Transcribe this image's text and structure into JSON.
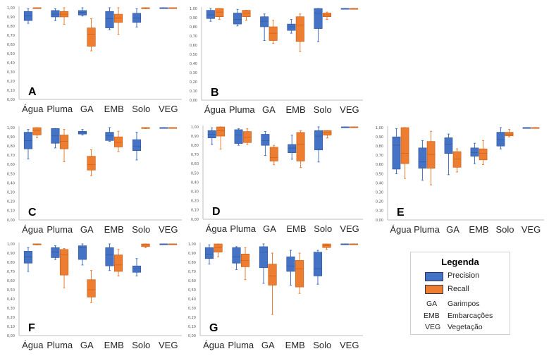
{
  "legend": {
    "title": "Legenda",
    "series": [
      {
        "name": "Precision",
        "color": "#4472c4"
      },
      {
        "name": "Recall",
        "color": "#ed7d31"
      }
    ],
    "abbreviations": [
      {
        "abbr": "GA",
        "meaning": "Garimpos"
      },
      {
        "abbr": "EMB",
        "meaning": "Embarcações"
      },
      {
        "abbr": "VEG",
        "meaning": "Vegetação"
      }
    ]
  },
  "chart_data": [
    {
      "type": "boxplot",
      "panel": "A",
      "categories": [
        "Água",
        "Pluma",
        "GA",
        "EMB",
        "Solo",
        "VEG"
      ],
      "ylim": [
        0,
        1
      ],
      "yticks": [
        "0,00",
        "0,10",
        "0,20",
        "0,30",
        "0,40",
        "0,50",
        "0,60",
        "0,70",
        "0,80",
        "0,90",
        "1,00"
      ],
      "series": [
        {
          "name": "Precision",
          "boxes": [
            [
              0.83,
              0.86,
              0.91,
              0.96,
              0.99
            ],
            [
              0.86,
              0.9,
              0.93,
              0.97,
              0.99
            ],
            [
              0.91,
              0.92,
              0.95,
              0.97,
              1.0
            ],
            [
              0.76,
              0.78,
              0.88,
              0.96,
              1.0
            ],
            [
              0.79,
              0.84,
              0.89,
              0.94,
              0.99
            ],
            [
              1.0,
              1.0,
              1.0,
              1.0,
              1.0
            ]
          ]
        },
        {
          "name": "Recall",
          "boxes": [
            [
              1.0,
              1.0,
              1.0,
              1.0,
              1.0
            ],
            [
              0.82,
              0.9,
              0.93,
              0.96,
              1.0
            ],
            [
              0.53,
              0.58,
              0.71,
              0.78,
              0.88
            ],
            [
              0.71,
              0.84,
              0.89,
              0.93,
              1.0
            ],
            [
              0.99,
              0.99,
              1.0,
              1.0,
              1.0
            ],
            [
              1.0,
              1.0,
              1.0,
              1.0,
              1.0
            ]
          ]
        }
      ]
    },
    {
      "type": "boxplot",
      "panel": "B",
      "categories": [
        "Água",
        "Pluma",
        "GA",
        "EMB",
        "Solo",
        "VEG"
      ],
      "ylim": [
        0,
        1
      ],
      "yticks": [
        "0,00",
        "0,10",
        "0,20",
        "0,30",
        "0,40",
        "0,50",
        "0,60",
        "0,70",
        "0,80",
        "0,90",
        "1,00"
      ],
      "series": [
        {
          "name": "Precision",
          "boxes": [
            [
              0.86,
              0.89,
              0.93,
              0.98,
              1.0
            ],
            [
              0.81,
              0.83,
              0.88,
              0.95,
              0.99
            ],
            [
              0.65,
              0.8,
              0.86,
              0.91,
              0.94
            ],
            [
              0.73,
              0.76,
              0.8,
              0.83,
              0.88
            ],
            [
              0.64,
              0.78,
              0.95,
              1.0,
              1.0
            ],
            [
              1.0,
              1.0,
              1.0,
              1.0,
              1.0
            ]
          ]
        },
        {
          "name": "Recall",
          "boxes": [
            [
              0.88,
              0.91,
              0.96,
              1.0,
              1.0
            ],
            [
              0.87,
              0.91,
              0.95,
              0.98,
              0.98
            ],
            [
              0.62,
              0.65,
              0.73,
              0.8,
              0.87
            ],
            [
              0.53,
              0.64,
              0.82,
              0.91,
              0.94
            ],
            [
              0.88,
              0.91,
              0.93,
              0.95,
              0.96
            ],
            [
              1.0,
              1.0,
              1.0,
              1.0,
              1.0
            ]
          ]
        }
      ]
    },
    {
      "type": "boxplot",
      "panel": "C",
      "categories": [
        "Água",
        "Pluma",
        "GA",
        "EMB",
        "Solo",
        "VEG"
      ],
      "ylim": [
        0,
        1
      ],
      "yticks": [
        "0,00",
        "0,10",
        "0,20",
        "0,30",
        "0,40",
        "0,50",
        "0,60",
        "0,70",
        "0,80",
        "0,90",
        "1,00"
      ],
      "series": [
        {
          "name": "Precision",
          "boxes": [
            [
              0.66,
              0.77,
              0.86,
              0.95,
              0.98
            ],
            [
              0.78,
              0.83,
              0.91,
              0.99,
              0.99
            ],
            [
              0.92,
              0.93,
              0.95,
              0.96,
              0.98
            ],
            [
              0.85,
              0.86,
              0.91,
              0.95,
              1.0
            ],
            [
              0.65,
              0.75,
              0.8,
              0.87,
              0.95
            ],
            [
              1.0,
              1.0,
              1.0,
              1.0,
              1.0
            ]
          ]
        },
        {
          "name": "Recall",
          "boxes": [
            [
              0.89,
              0.92,
              0.97,
              1.0,
              1.0
            ],
            [
              0.63,
              0.77,
              0.85,
              0.92,
              0.98
            ],
            [
              0.48,
              0.54,
              0.6,
              0.69,
              0.76
            ],
            [
              0.74,
              0.79,
              0.84,
              0.9,
              0.96
            ],
            [
              0.99,
              0.99,
              1.0,
              1.0,
              1.0
            ],
            [
              1.0,
              1.0,
              1.0,
              1.0,
              1.0
            ]
          ]
        }
      ]
    },
    {
      "type": "boxplot",
      "panel": "D",
      "categories": [
        "Água",
        "Pluma",
        "GA",
        "EMB",
        "Solo",
        "VEG"
      ],
      "ylim": [
        0,
        1
      ],
      "yticks": [
        "0,00",
        "0,10",
        "0,20",
        "0,30",
        "0,40",
        "0,50",
        "0,60",
        "0,70",
        "0,80",
        "0,90",
        "1,00"
      ],
      "series": [
        {
          "name": "Precision",
          "boxes": [
            [
              0.81,
              0.88,
              0.92,
              0.96,
              0.99
            ],
            [
              0.8,
              0.82,
              0.91,
              0.97,
              0.98
            ],
            [
              0.69,
              0.8,
              0.85,
              0.92,
              0.95
            ],
            [
              0.65,
              0.72,
              0.77,
              0.81,
              0.91
            ],
            [
              0.62,
              0.75,
              0.9,
              0.96,
              1.0
            ],
            [
              1.0,
              1.0,
              1.0,
              1.0,
              1.0
            ]
          ]
        },
        {
          "name": "Recall",
          "boxes": [
            [
              0.76,
              0.9,
              0.96,
              1.0,
              1.0
            ],
            [
              0.81,
              0.83,
              0.89,
              0.95,
              0.98
            ],
            [
              0.59,
              0.63,
              0.67,
              0.78,
              0.8
            ],
            [
              0.56,
              0.63,
              0.81,
              0.94,
              0.96
            ],
            [
              0.88,
              0.91,
              0.94,
              0.96,
              0.96
            ],
            [
              1.0,
              1.0,
              1.0,
              1.0,
              1.0
            ]
          ]
        }
      ]
    },
    {
      "type": "boxplot",
      "panel": "E",
      "categories": [
        "Água",
        "Pluma",
        "GA",
        "EMB",
        "Solo",
        "VEG"
      ],
      "ylim": [
        0,
        1
      ],
      "yticks": [
        "0,00",
        "0,10",
        "0,20",
        "0,30",
        "0,40",
        "0,50",
        "0,60",
        "0,70",
        "0,80",
        "0,90",
        "1,00"
      ],
      "series": [
        {
          "name": "Precision",
          "boxes": [
            [
              0.5,
              0.55,
              0.81,
              0.9,
              0.99
            ],
            [
              0.43,
              0.56,
              0.63,
              0.78,
              0.86
            ],
            [
              0.49,
              0.72,
              0.82,
              0.89,
              0.93
            ],
            [
              0.61,
              0.69,
              0.73,
              0.78,
              0.83
            ],
            [
              0.77,
              0.8,
              0.87,
              0.95,
              1.0
            ],
            [
              1.0,
              1.0,
              1.0,
              1.0,
              1.0
            ]
          ]
        },
        {
          "name": "Recall",
          "boxes": [
            [
              0.45,
              0.61,
              0.72,
              1.0,
              1.0
            ],
            [
              0.38,
              0.56,
              0.71,
              0.85,
              0.96
            ],
            [
              0.52,
              0.57,
              0.66,
              0.74,
              0.77
            ],
            [
              0.6,
              0.65,
              0.72,
              0.77,
              0.86
            ],
            [
              0.9,
              0.91,
              0.93,
              0.95,
              0.98
            ],
            [
              1.0,
              1.0,
              1.0,
              1.0,
              1.0
            ]
          ]
        }
      ]
    },
    {
      "type": "boxplot",
      "panel": "F",
      "categories": [
        "Água",
        "Pluma",
        "GA",
        "EMB",
        "Solo",
        "VEG"
      ],
      "ylim": [
        0,
        1
      ],
      "yticks": [
        "0,00",
        "0,10",
        "0,20",
        "0,30",
        "0,40",
        "0,50",
        "0,60",
        "0,70",
        "0,80",
        "0,90",
        "1,00"
      ],
      "series": [
        {
          "name": "Precision",
          "boxes": [
            [
              0.7,
              0.79,
              0.86,
              0.92,
              0.96
            ],
            [
              0.83,
              0.85,
              0.91,
              0.96,
              0.98
            ],
            [
              0.77,
              0.83,
              0.96,
              0.98,
              1.0
            ],
            [
              0.71,
              0.76,
              0.88,
              0.96,
              1.0
            ],
            [
              0.65,
              0.69,
              0.73,
              0.76,
              0.84
            ],
            [
              1.0,
              1.0,
              1.0,
              1.0,
              1.0
            ]
          ]
        },
        {
          "name": "Recall",
          "boxes": [
            [
              0.99,
              0.99,
              1.0,
              1.0,
              1.0
            ],
            [
              0.52,
              0.66,
              0.88,
              0.94,
              0.95
            ],
            [
              0.36,
              0.42,
              0.5,
              0.61,
              0.71
            ],
            [
              0.65,
              0.7,
              0.77,
              0.88,
              0.94
            ],
            [
              0.96,
              0.97,
              0.99,
              1.0,
              1.0
            ],
            [
              1.0,
              1.0,
              1.0,
              1.0,
              1.0
            ]
          ]
        }
      ]
    },
    {
      "type": "boxplot",
      "panel": "G",
      "categories": [
        "Água",
        "Pluma",
        "GA",
        "EMB",
        "Solo",
        "VEG"
      ],
      "ylim": [
        0,
        1
      ],
      "yticks": [
        "0,00",
        "0,10",
        "0,20",
        "0,30",
        "0,40",
        "0,50",
        "0,60",
        "0,70",
        "0,80",
        "0,90",
        "1,00"
      ],
      "series": [
        {
          "name": "Precision",
          "boxes": [
            [
              0.78,
              0.84,
              0.89,
              0.96,
              0.99
            ],
            [
              0.72,
              0.79,
              0.86,
              0.96,
              0.97
            ],
            [
              0.57,
              0.74,
              0.91,
              0.97,
              1.0
            ],
            [
              0.55,
              0.7,
              0.76,
              0.86,
              0.93
            ],
            [
              0.56,
              0.65,
              0.73,
              0.91,
              0.93
            ],
            [
              1.0,
              1.0,
              1.0,
              1.0,
              1.0
            ]
          ]
        },
        {
          "name": "Recall",
          "boxes": [
            [
              0.86,
              0.91,
              0.96,
              1.0,
              1.0
            ],
            [
              0.61,
              0.75,
              0.82,
              0.89,
              0.96
            ],
            [
              0.23,
              0.55,
              0.65,
              0.78,
              0.9
            ],
            [
              0.46,
              0.53,
              0.73,
              0.82,
              0.9
            ],
            [
              0.94,
              0.96,
              0.98,
              1.0,
              1.0
            ],
            [
              1.0,
              1.0,
              1.0,
              1.0,
              1.0
            ]
          ]
        }
      ]
    }
  ]
}
